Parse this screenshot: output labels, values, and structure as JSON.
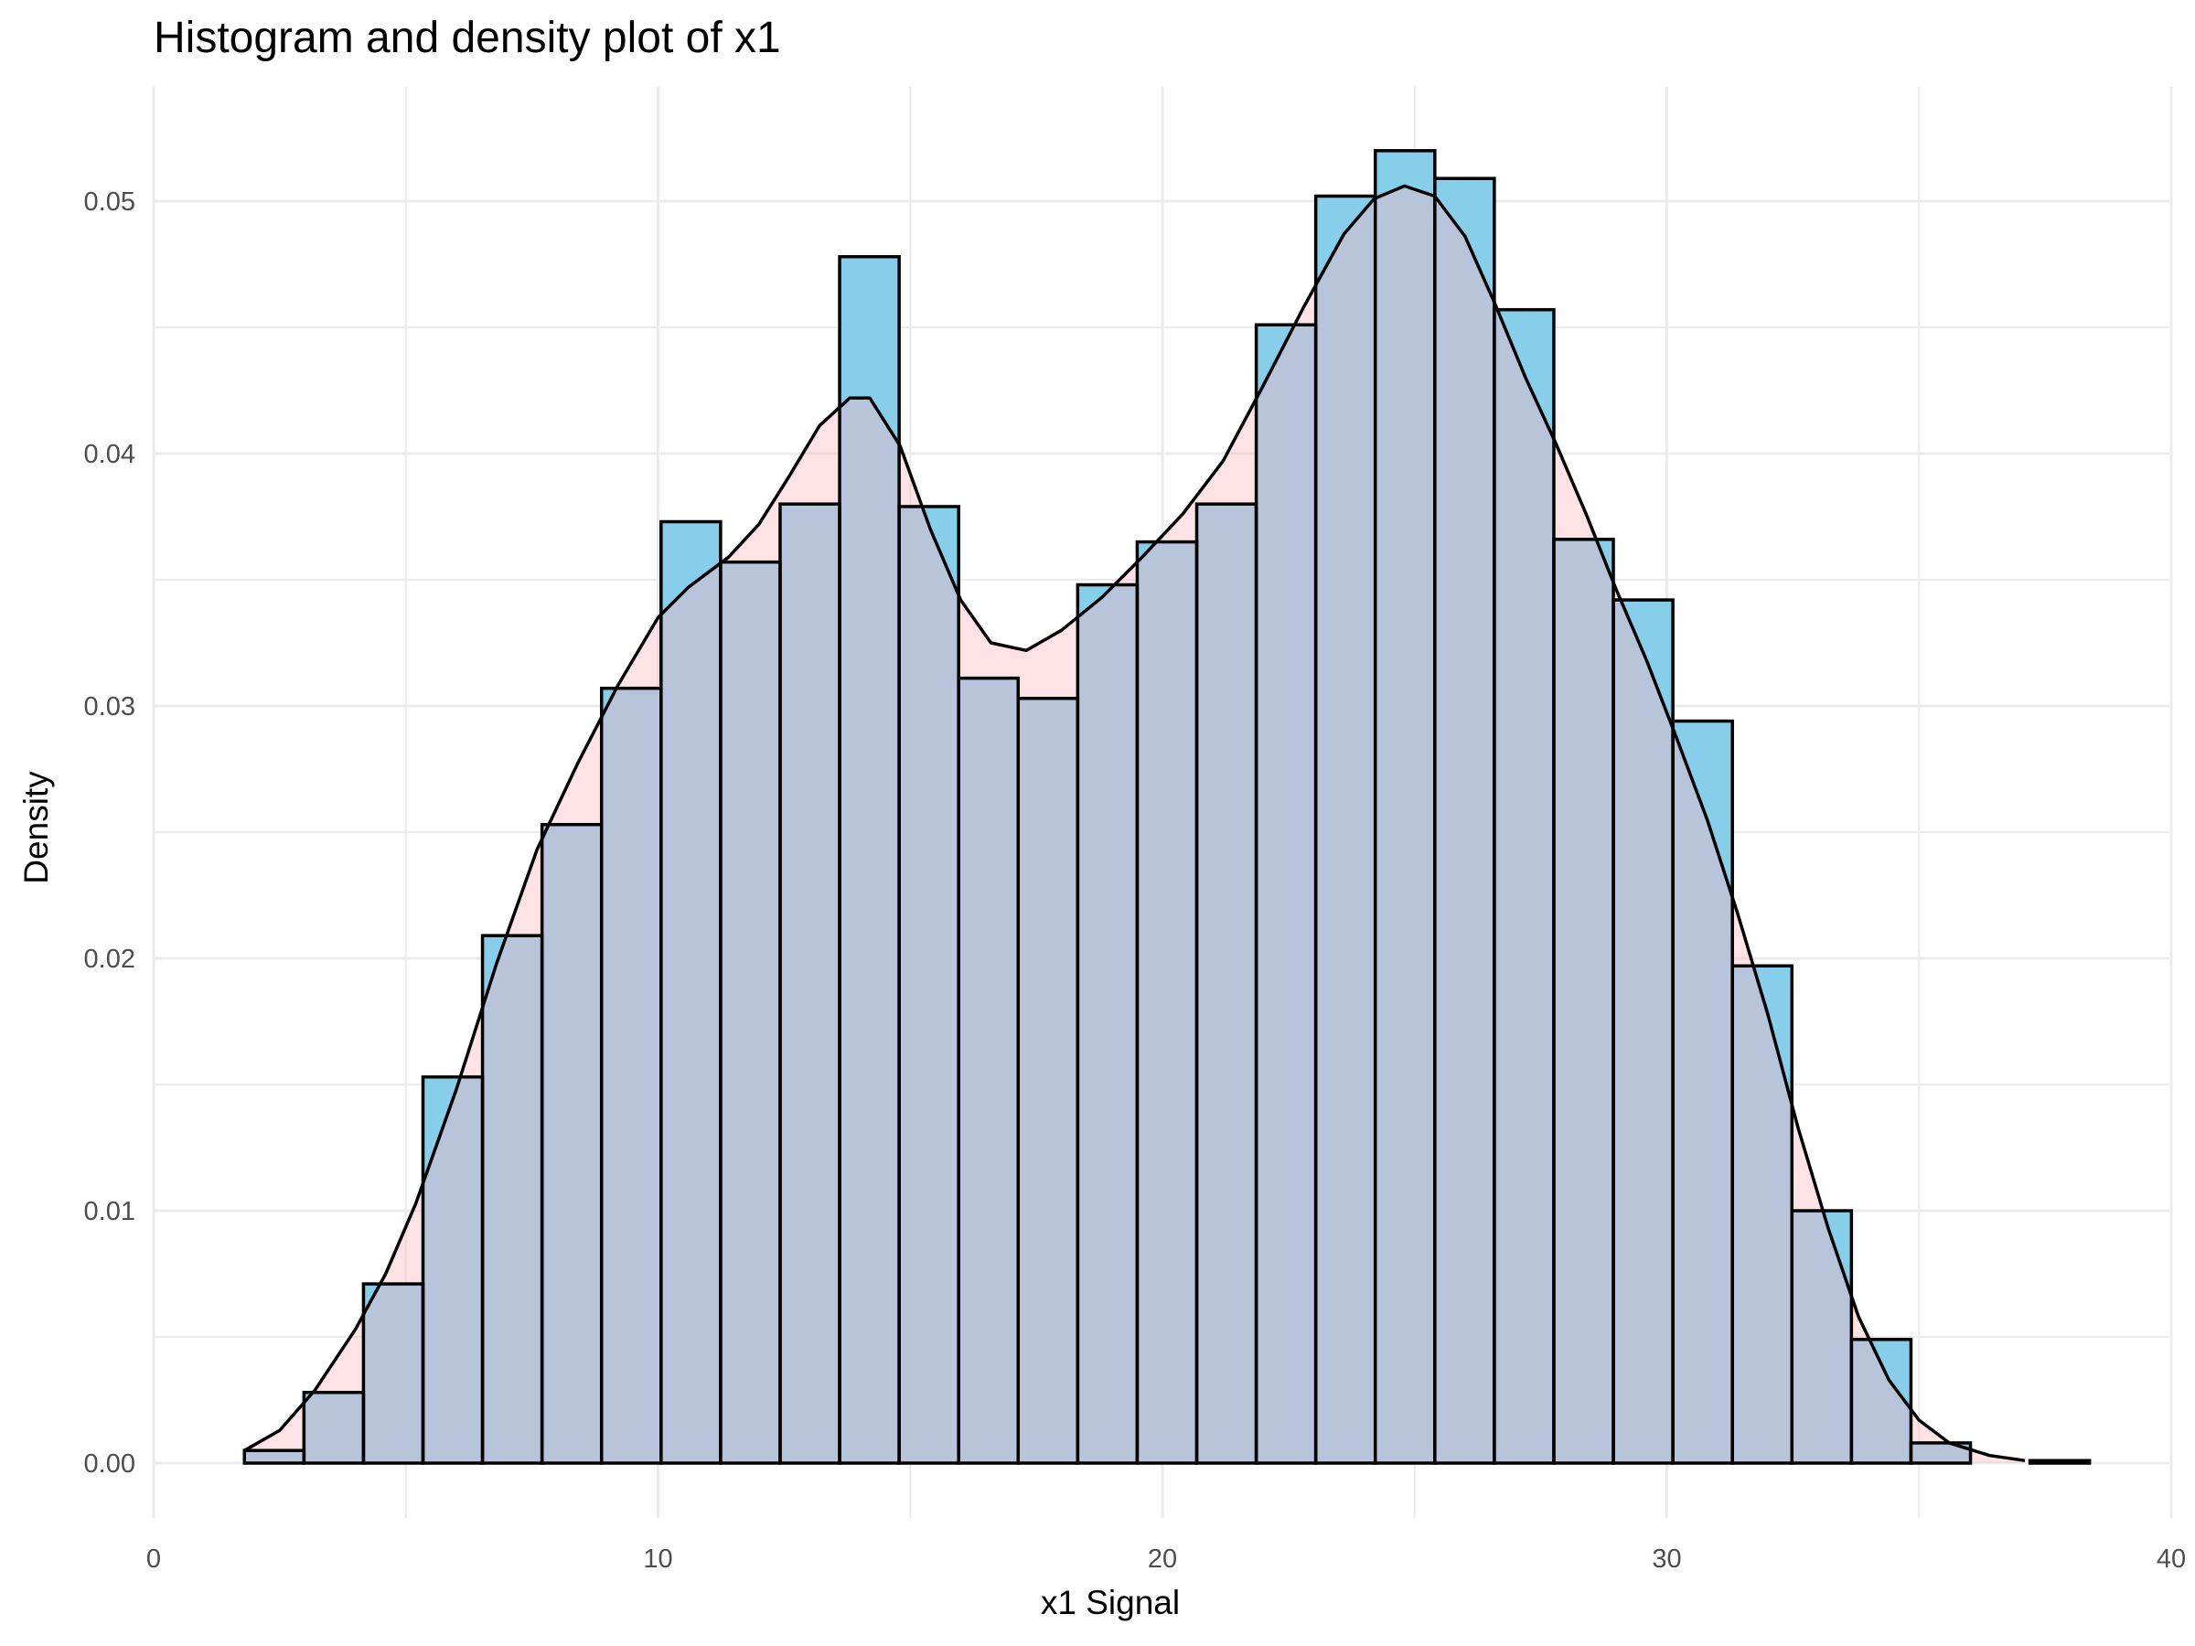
{
  "chart_data": {
    "type": "bar",
    "title": "Histogram and density plot of x1",
    "xlabel": "x1  Signal",
    "ylabel": "Density",
    "xlim": [
      0,
      40
    ],
    "ylim": [
      0,
      0.053
    ],
    "x_ticks": [
      "0",
      "10",
      "20",
      "30",
      "40"
    ],
    "y_ticks": [
      "0.00",
      "0.01",
      "0.02",
      "0.03",
      "0.04",
      "0.05"
    ],
    "grid": true,
    "legend": "none",
    "colors": {
      "histogram_fill": "#87ceeb",
      "density_fill": "#ffb6c1",
      "outline": "#000000",
      "grid": "#ebebeb"
    },
    "bin_edges": [
      1.8,
      2.98,
      4.16,
      5.34,
      6.52,
      7.7,
      8.88,
      10.06,
      11.24,
      12.42,
      13.6,
      14.78,
      15.96,
      17.14,
      18.32,
      19.5,
      20.68,
      21.86,
      23.04,
      24.22,
      25.4,
      26.58,
      27.76,
      28.94,
      30.12,
      31.3,
      32.48,
      33.66,
      34.84,
      36.02,
      37.2,
      38.38
    ],
    "histogram_density": [
      0.0005,
      0.0028,
      0.0071,
      0.0153,
      0.0209,
      0.0253,
      0.0307,
      0.0373,
      0.0357,
      0.038,
      0.0478,
      0.0379,
      0.0311,
      0.0303,
      0.0348,
      0.0365,
      0.038,
      0.0451,
      0.0502,
      0.052,
      0.0509,
      0.0457,
      0.0366,
      0.0342,
      0.0294,
      0.0197,
      0.01,
      0.0049,
      0.0008,
      0.0,
      0.0001
    ],
    "density_curve": {
      "x": [
        1.8,
        2.5,
        3.2,
        4.0,
        4.6,
        5.2,
        6.0,
        6.8,
        7.6,
        8.4,
        9.2,
        10.0,
        10.6,
        11.4,
        12.0,
        12.6,
        13.2,
        13.8,
        14.2,
        14.8,
        15.4,
        16.0,
        16.6,
        17.3,
        18.0,
        18.8,
        19.6,
        20.4,
        21.2,
        22.0,
        22.8,
        23.6,
        24.2,
        24.8,
        25.4,
        26.0,
        26.6,
        27.2,
        27.8,
        28.4,
        29.0,
        29.6,
        30.2,
        30.8,
        31.4,
        32.0,
        32.6,
        33.2,
        33.8,
        34.4,
        35.0,
        35.6,
        36.4,
        37.1
      ],
      "y": [
        0.0005,
        0.0013,
        0.0029,
        0.0053,
        0.0075,
        0.0103,
        0.0148,
        0.0198,
        0.0243,
        0.0277,
        0.0308,
        0.0335,
        0.0347,
        0.0359,
        0.0372,
        0.0391,
        0.0411,
        0.0422,
        0.0422,
        0.0403,
        0.037,
        0.0342,
        0.0325,
        0.0322,
        0.033,
        0.0343,
        0.0359,
        0.0376,
        0.0397,
        0.0427,
        0.0458,
        0.0487,
        0.0501,
        0.0506,
        0.0502,
        0.0486,
        0.0459,
        0.043,
        0.0404,
        0.0376,
        0.0346,
        0.0318,
        0.0287,
        0.0255,
        0.0218,
        0.0178,
        0.0133,
        0.0093,
        0.0058,
        0.0033,
        0.0017,
        0.0008,
        0.0003,
        0.0001
      ]
    }
  }
}
